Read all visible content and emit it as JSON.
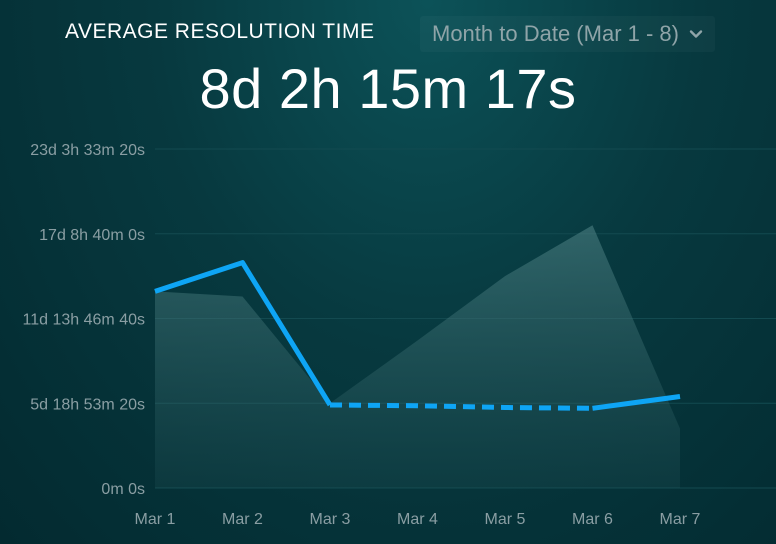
{
  "widget": {
    "title": "AVERAGE RESOLUTION TIME",
    "range_label": "Month to Date (Mar 1 - 8)",
    "range_icon": "chevron-down-icon",
    "value": "8d 2h 15m 17s"
  },
  "colors": {
    "line": "#0ea5f5",
    "comparison_area": "#3c6a6d",
    "grid": "#134a50",
    "tick_text": "#8a9ea3"
  },
  "chart_data": {
    "type": "line",
    "categories": [
      "Mar 1",
      "Mar 2",
      "Mar 3",
      "Mar 4",
      "Mar 5",
      "Mar 6",
      "Mar 7"
    ],
    "y_ticks": [
      {
        "value": 0,
        "label": "0m 0s"
      },
      {
        "value": 5,
        "label": "5d 18h 53m 20s"
      },
      {
        "value": 10,
        "label": "11d 13h 46m 40s"
      },
      {
        "value": 15,
        "label": "17d 8h 40m 0s"
      },
      {
        "value": 20,
        "label": "23d 3h 33m 20s"
      }
    ],
    "ylim": [
      0,
      20
    ],
    "series": [
      {
        "values": [
          11.6,
          13.3,
          4.9,
          4.85,
          4.75,
          4.7,
          5.4
        ],
        "dashed_segments": [
          [
            2,
            5
          ]
        ]
      },
      {
        "values": [
          11.6,
          11.3,
          5.0,
          8.7,
          12.5,
          15.5,
          3.5
        ],
        "style": "area"
      }
    ],
    "grid": true,
    "legend": "none"
  }
}
